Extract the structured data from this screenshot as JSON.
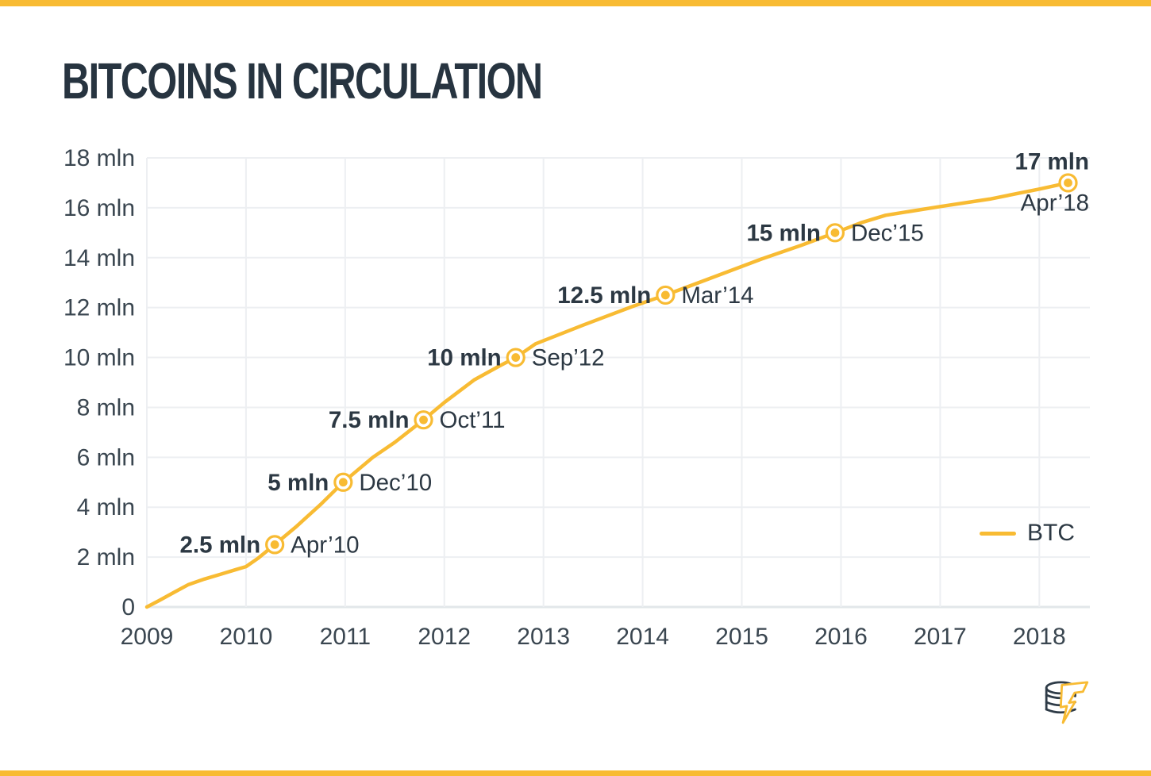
{
  "header": {
    "title": "BITCOINS IN CIRCULATION"
  },
  "colors": {
    "accent": "#F8BB33",
    "dark_text": "#273440",
    "annotation_text": "#2C3843",
    "tick_text": "#3A4650",
    "grid_line": "#EDEFF2",
    "axis_line": "#E2E7EA",
    "logo_outline": "#2E3B47"
  },
  "legend": {
    "label": "BTC"
  },
  "branding": {
    "icon": "coin-stack-lightning-icon"
  },
  "chart_data": {
    "type": "line",
    "title": "BITCOINS IN CIRCULATION",
    "xlabel": "",
    "ylabel": "",
    "xlim": [
      2009,
      2018.51
    ],
    "ylim": [
      0,
      18
    ],
    "grid": true,
    "legend": {
      "label": "BTC",
      "position": "right-middle"
    },
    "x_ticks": [
      {
        "value": 2009,
        "label": "2009"
      },
      {
        "value": 2010,
        "label": "2010"
      },
      {
        "value": 2011,
        "label": "2011"
      },
      {
        "value": 2012,
        "label": "2012"
      },
      {
        "value": 2013,
        "label": "2013"
      },
      {
        "value": 2014,
        "label": "2014"
      },
      {
        "value": 2015,
        "label": "2015"
      },
      {
        "value": 2016,
        "label": "2016"
      },
      {
        "value": 2017,
        "label": "2017"
      },
      {
        "value": 2018,
        "label": "2018"
      }
    ],
    "y_ticks": [
      {
        "value": 0,
        "label": "0"
      },
      {
        "value": 2,
        "label": "2 mln"
      },
      {
        "value": 4,
        "label": "4 mln"
      },
      {
        "value": 6,
        "label": "6 mln"
      },
      {
        "value": 8,
        "label": "8 mln"
      },
      {
        "value": 10,
        "label": "10 mln"
      },
      {
        "value": 12,
        "label": "12 mln"
      },
      {
        "value": 14,
        "label": "14 mln"
      },
      {
        "value": 16,
        "label": "16 mln"
      },
      {
        "value": 18,
        "label": "18 mln"
      }
    ],
    "series": [
      {
        "name": "BTC",
        "color": "#F8BB33",
        "points": [
          [
            2009.0,
            0
          ],
          [
            2009.12,
            0.25
          ],
          [
            2009.28,
            0.6
          ],
          [
            2009.42,
            0.9
          ],
          [
            2009.58,
            1.12
          ],
          [
            2009.75,
            1.32
          ],
          [
            2009.9,
            1.5
          ],
          [
            2010.0,
            1.62
          ],
          [
            2010.12,
            1.95
          ],
          [
            2010.29,
            2.5
          ],
          [
            2010.5,
            3.2
          ],
          [
            2010.75,
            4.1
          ],
          [
            2010.98,
            5.0
          ],
          [
            2011.28,
            6.0
          ],
          [
            2011.5,
            6.6
          ],
          [
            2011.79,
            7.5
          ],
          [
            2012.0,
            8.2
          ],
          [
            2012.3,
            9.1
          ],
          [
            2012.55,
            9.65
          ],
          [
            2012.72,
            10.0
          ],
          [
            2012.92,
            10.55
          ],
          [
            2013.4,
            11.3
          ],
          [
            2013.9,
            12.05
          ],
          [
            2014.23,
            12.5
          ],
          [
            2014.7,
            13.2
          ],
          [
            2015.2,
            13.95
          ],
          [
            2015.6,
            14.5
          ],
          [
            2015.94,
            15.0
          ],
          [
            2016.2,
            15.4
          ],
          [
            2016.45,
            15.7
          ],
          [
            2017.0,
            16.05
          ],
          [
            2017.5,
            16.35
          ],
          [
            2018.0,
            16.75
          ],
          [
            2018.29,
            17.0
          ]
        ]
      }
    ],
    "milestones": [
      {
        "value_label": "2.5 mln",
        "date_label": "Apr’10",
        "year": 2010.29,
        "mln": 2.5,
        "layout": "side"
      },
      {
        "value_label": "5 mln",
        "date_label": "Dec’10",
        "year": 2010.98,
        "mln": 5,
        "layout": "side"
      },
      {
        "value_label": "7.5 mln",
        "date_label": "Oct’11",
        "year": 2011.79,
        "mln": 7.5,
        "layout": "side"
      },
      {
        "value_label": "10 mln",
        "date_label": "Sep’12",
        "year": 2012.72,
        "mln": 10,
        "layout": "side"
      },
      {
        "value_label": "12.5 mln",
        "date_label": "Mar’14",
        "year": 2014.23,
        "mln": 12.5,
        "layout": "side"
      },
      {
        "value_label": "15 mln",
        "date_label": "Dec’15",
        "year": 2015.94,
        "mln": 15,
        "layout": "side"
      },
      {
        "value_label": "17 mln",
        "date_label": "Apr’18",
        "year": 2018.29,
        "mln": 17,
        "layout": "stack"
      }
    ]
  }
}
